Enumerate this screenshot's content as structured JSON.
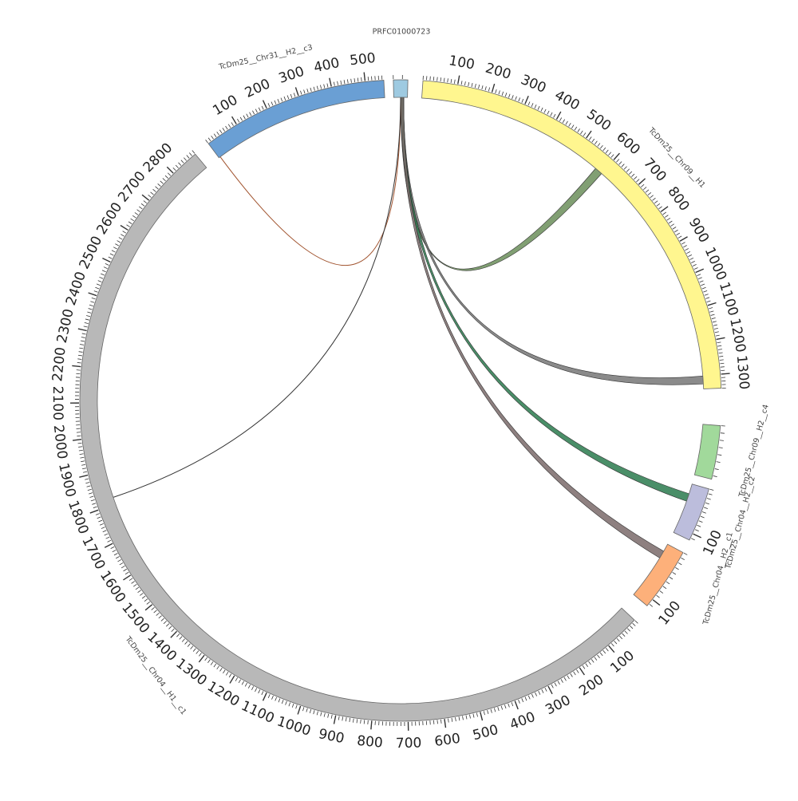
{
  "diagram": {
    "type": "circos",
    "segments": [
      {
        "id": "chr09",
        "name": "TcDm25__Chr09__H1",
        "length": 1340,
        "color": "#fff68f",
        "ticks": [
          100,
          200,
          300,
          400,
          500,
          600,
          700,
          800,
          900,
          1000,
          1100,
          1200,
          1300
        ]
      },
      {
        "id": "h2c4",
        "name": "TcDm25__Chr09__H2__c4",
        "length": 75,
        "color": "#a1d99b",
        "ticks": []
      },
      {
        "id": "chr04c2",
        "name": "TcDm25__Chr04__H2__c2",
        "length": 115,
        "color": "#bcbddc",
        "ticks": [
          100
        ]
      },
      {
        "id": "chr04c1",
        "name": "TcDm25__Chr04__H2__c1",
        "length": 115,
        "color": "#fdb07a",
        "ticks": [
          100
        ]
      },
      {
        "id": "chr04h1",
        "name": "TcDm25__Chr04__H1__c1",
        "length": 2880,
        "color": "#b8b8b8",
        "ticks": [
          100,
          200,
          300,
          400,
          500,
          600,
          700,
          800,
          900,
          1000,
          1100,
          1200,
          1300,
          1400,
          1500,
          1600,
          1700,
          1800,
          1900,
          2000,
          2100,
          2200,
          2300,
          2400,
          2500,
          2600,
          2700,
          2800
        ]
      },
      {
        "id": "chr31",
        "name": "TcDm25__Chr31__H2__c3",
        "length": 555,
        "color": "#6a9fd4",
        "ticks": [
          100,
          200,
          300,
          400,
          500
        ]
      },
      {
        "id": "prfc",
        "name": "PRFC01000723",
        "length": 16,
        "color": "#9ecae1",
        "ticks": []
      }
    ],
    "links": [
      {
        "from": "prfc",
        "to": "chr09",
        "target_pos": 600,
        "color": "#6b8e5a"
      },
      {
        "from": "prfc",
        "to": "chr09",
        "target_pos": 1325,
        "color": "#777777"
      },
      {
        "from": "prfc",
        "to": "chr04c2",
        "target_pos": 40,
        "color": "#2a7a4e"
      },
      {
        "from": "prfc",
        "to": "chr04c1",
        "target_pos": 30,
        "color": "#7a6a6a"
      },
      {
        "from": "prfc",
        "to": "chr31",
        "target_pos": 5,
        "color": "#a0522d"
      },
      {
        "from": "prfc",
        "to": "chr04h1",
        "target_pos": 1820,
        "color": "#333333"
      }
    ]
  }
}
